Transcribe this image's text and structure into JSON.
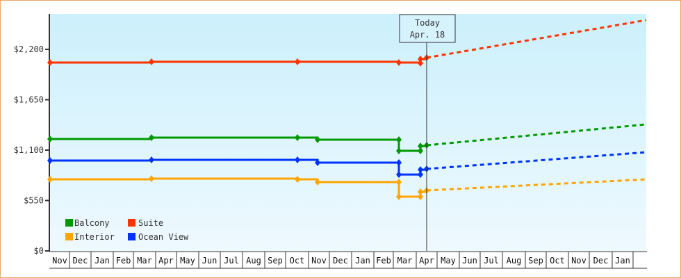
{
  "chart_data": {
    "type": "line",
    "title": "",
    "xlabel": "",
    "ylabel": "",
    "ylim": [
      0,
      2585
    ],
    "y_ticks": [
      {
        "label": "$0",
        "value": 0
      },
      {
        "label": "$550",
        "value": 550
      },
      {
        "label": "$1,100",
        "value": 1100
      },
      {
        "label": "$1,650",
        "value": 1650
      },
      {
        "label": "$2,200",
        "value": 2200
      }
    ],
    "x_months": [
      "Nov",
      "Dec",
      "Jan",
      "Feb",
      "Mar",
      "Apr",
      "May",
      "Jun",
      "Jul",
      "Aug",
      "Sep",
      "Oct",
      "Nov",
      "Dec",
      "Jan",
      "Feb",
      "Mar",
      "Apr",
      "May",
      "Jun",
      "Jul",
      "Aug",
      "Sep",
      "Oct",
      "Nov",
      "Dec",
      "Jan"
    ],
    "grid": false,
    "legend_position": "lower-left inside",
    "today_marker": {
      "line1": "Today",
      "line2": "Apr. 18"
    },
    "series": [
      {
        "name": "Suite",
        "color": "#ff3300",
        "actual": [
          [
            "Nov start",
            2056
          ],
          [
            "Mar/Apr",
            2064
          ],
          [
            "Oct",
            2064
          ],
          [
            "Mar",
            2056
          ],
          [
            "Apr",
            2049
          ],
          [
            "Apr",
            2094
          ],
          [
            "Apr 18",
            2109
          ]
        ],
        "forecast_end": 2519
      },
      {
        "name": "Balcony",
        "color": "#009900",
        "actual": [
          [
            "Nov start",
            1221
          ],
          [
            "Mar/Apr",
            1237
          ],
          [
            "Oct",
            1237
          ],
          [
            "Nov",
            1214
          ],
          [
            "Mar",
            1214
          ],
          [
            "Mar",
            1092
          ],
          [
            "Apr",
            1092
          ],
          [
            "Apr",
            1145
          ],
          [
            "Apr 18",
            1153
          ]
        ],
        "forecast_end": 1381
      },
      {
        "name": "Ocean View",
        "color": "#0033ff",
        "actual": [
          [
            "Nov start",
            986
          ],
          [
            "Mar/Apr",
            994
          ],
          [
            "Oct",
            994
          ],
          [
            "Nov",
            963
          ],
          [
            "Mar",
            963
          ],
          [
            "Mar",
            834
          ],
          [
            "Apr",
            834
          ],
          [
            "Apr",
            887
          ],
          [
            "Apr 18",
            895
          ]
        ],
        "forecast_end": 1077
      },
      {
        "name": "Interior",
        "color": "#ffa500",
        "actual": [
          [
            "Nov start",
            781
          ],
          [
            "Mar/Apr",
            789
          ],
          [
            "Oct",
            781
          ],
          [
            "Nov",
            751
          ],
          [
            "Mar",
            751
          ],
          [
            "Mar",
            592
          ],
          [
            "Apr",
            592
          ],
          [
            "Apr",
            645
          ],
          [
            "Apr 18",
            660
          ]
        ],
        "forecast_end": 781
      }
    ]
  },
  "legend": [
    {
      "label": "Balcony",
      "color": "#009900"
    },
    {
      "label": "Suite",
      "color": "#ff3300"
    },
    {
      "label": "Interior",
      "color": "#ffa500"
    },
    {
      "label": "Ocean View",
      "color": "#0033ff"
    }
  ],
  "today": {
    "line1": "Today",
    "line2": "Apr. 18"
  }
}
